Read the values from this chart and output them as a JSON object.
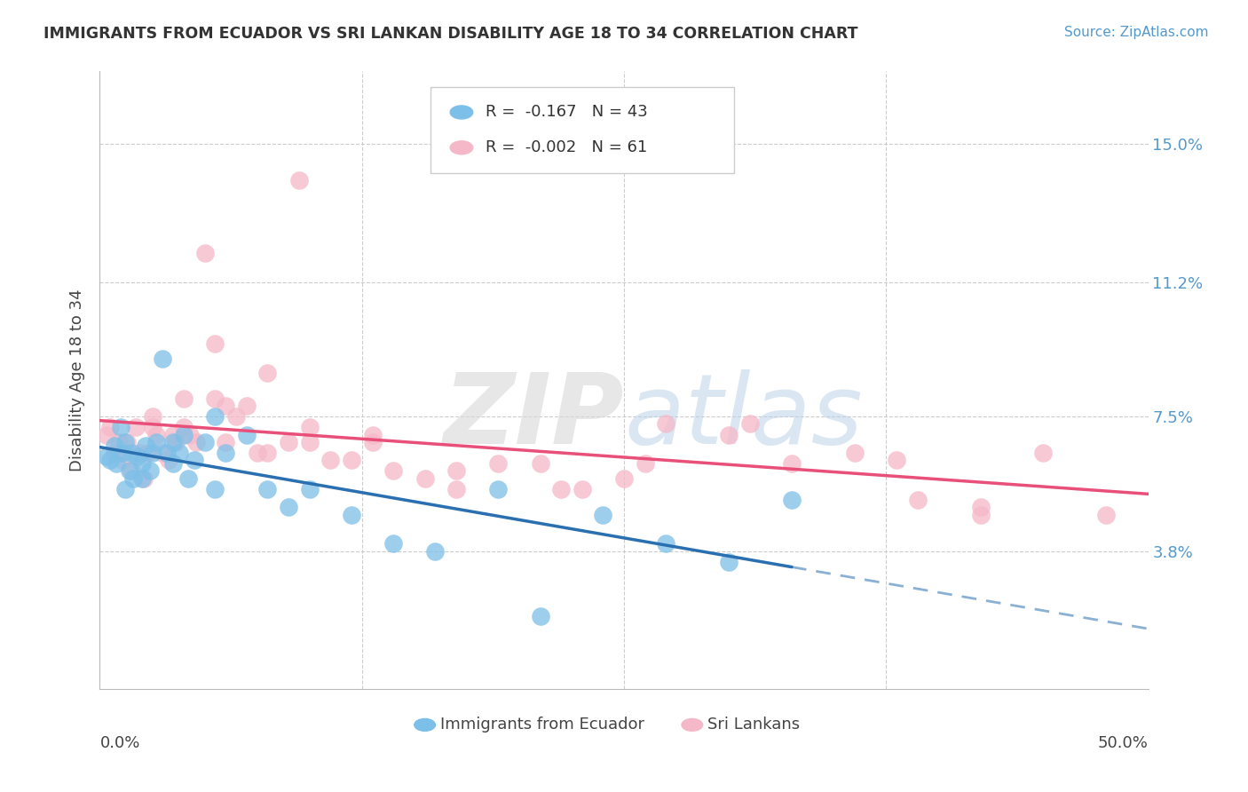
{
  "title": "IMMIGRANTS FROM ECUADOR VS SRI LANKAN DISABILITY AGE 18 TO 34 CORRELATION CHART",
  "source": "Source: ZipAtlas.com",
  "ylabel": "Disability Age 18 to 34",
  "yticks": [
    0.038,
    0.075,
    0.112,
    0.15
  ],
  "ytick_labels": [
    "3.8%",
    "7.5%",
    "11.2%",
    "15.0%"
  ],
  "xlim": [
    0.0,
    0.5
  ],
  "ylim": [
    0.0,
    0.17
  ],
  "legend_label1": "Immigrants from Ecuador",
  "legend_label2": "Sri Lankans",
  "R1": -0.167,
  "N1": 43,
  "R2": -0.002,
  "N2": 61,
  "color_blue": "#7cbfe8",
  "color_pink": "#f5b8c8",
  "color_blue_line": "#2a6faf",
  "color_pink_line": "#e8507a",
  "watermark": "ZIPatlas",
  "blue_x": [
    0.003,
    0.005,
    0.007,
    0.008,
    0.01,
    0.011,
    0.012,
    0.014,
    0.015,
    0.016,
    0.018,
    0.02,
    0.022,
    0.024,
    0.025,
    0.027,
    0.03,
    0.032,
    0.035,
    0.038,
    0.04,
    0.042,
    0.045,
    0.05,
    0.055,
    0.06,
    0.07,
    0.08,
    0.09,
    0.1,
    0.12,
    0.14,
    0.16,
    0.19,
    0.21,
    0.24,
    0.27,
    0.3,
    0.33,
    0.012,
    0.02,
    0.035,
    0.055
  ],
  "blue_y": [
    0.064,
    0.063,
    0.067,
    0.062,
    0.072,
    0.065,
    0.068,
    0.06,
    0.065,
    0.058,
    0.064,
    0.062,
    0.067,
    0.06,
    0.065,
    0.068,
    0.091,
    0.065,
    0.068,
    0.065,
    0.07,
    0.058,
    0.063,
    0.068,
    0.075,
    0.065,
    0.07,
    0.055,
    0.05,
    0.055,
    0.048,
    0.04,
    0.038,
    0.055,
    0.02,
    0.048,
    0.04,
    0.035,
    0.052,
    0.055,
    0.058,
    0.062,
    0.055
  ],
  "pink_x": [
    0.003,
    0.005,
    0.007,
    0.009,
    0.011,
    0.013,
    0.015,
    0.017,
    0.019,
    0.021,
    0.023,
    0.025,
    0.027,
    0.03,
    0.033,
    0.036,
    0.04,
    0.043,
    0.046,
    0.05,
    0.055,
    0.06,
    0.065,
    0.07,
    0.075,
    0.08,
    0.09,
    0.1,
    0.11,
    0.12,
    0.13,
    0.14,
    0.155,
    0.17,
    0.19,
    0.21,
    0.23,
    0.25,
    0.27,
    0.3,
    0.33,
    0.36,
    0.39,
    0.42,
    0.45,
    0.48,
    0.04,
    0.08,
    0.13,
    0.06,
    0.1,
    0.17,
    0.22,
    0.26,
    0.31,
    0.38,
    0.42,
    0.035,
    0.025,
    0.055,
    0.095
  ],
  "pink_y": [
    0.07,
    0.072,
    0.065,
    0.068,
    0.063,
    0.068,
    0.06,
    0.072,
    0.065,
    0.058,
    0.065,
    0.075,
    0.07,
    0.065,
    0.063,
    0.068,
    0.08,
    0.07,
    0.068,
    0.12,
    0.095,
    0.068,
    0.075,
    0.078,
    0.065,
    0.087,
    0.068,
    0.072,
    0.063,
    0.063,
    0.07,
    0.06,
    0.058,
    0.06,
    0.062,
    0.062,
    0.055,
    0.058,
    0.073,
    0.07,
    0.062,
    0.065,
    0.052,
    0.048,
    0.065,
    0.048,
    0.072,
    0.065,
    0.068,
    0.078,
    0.068,
    0.055,
    0.055,
    0.062,
    0.073,
    0.063,
    0.05,
    0.07,
    0.072,
    0.08,
    0.14
  ]
}
